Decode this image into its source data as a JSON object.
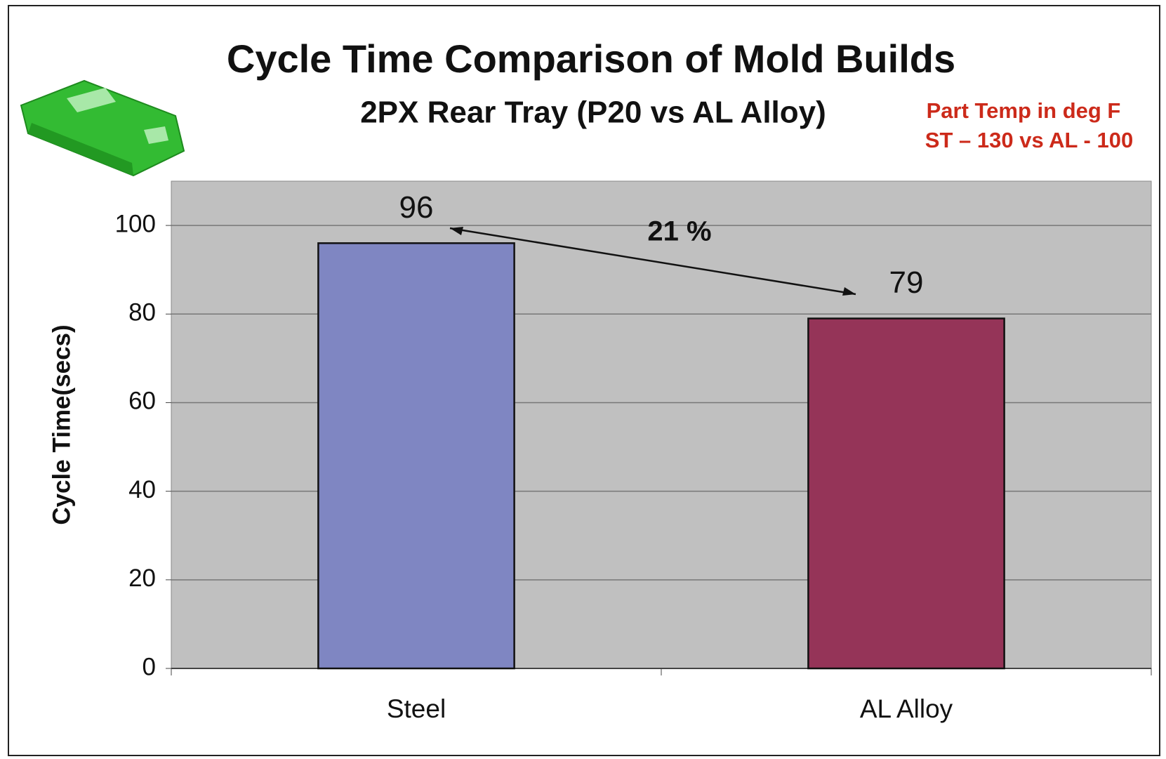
{
  "chart_data": {
    "type": "bar",
    "title": "Cycle Time Comparison of Mold Builds",
    "subtitle": "2PX Rear Tray (P20 vs AL Alloy)",
    "annotations": [
      "Part Temp in deg F",
      "ST – 130 vs AL - 100",
      "21 %"
    ],
    "y_label": "Cycle Time(secs)",
    "categories": [
      "Steel",
      "AL Alloy"
    ],
    "values": [
      96,
      79
    ],
    "colors": [
      "#7f86c2",
      "#953458"
    ],
    "ylim": [
      0,
      110
    ],
    "yticks": [
      0,
      20,
      40,
      60,
      80,
      100
    ],
    "grid": true
  }
}
